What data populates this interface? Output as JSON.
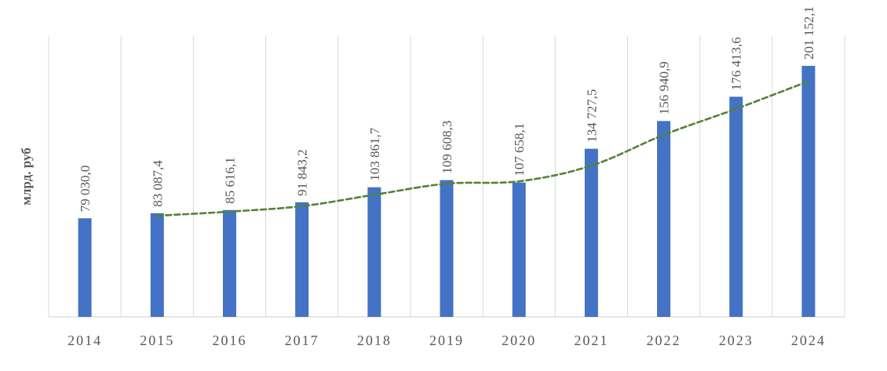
{
  "chart_data": {
    "type": "bar",
    "title": "",
    "xlabel": "",
    "ylabel": "млрд. руб",
    "categories": [
      "2014",
      "2015",
      "2016",
      "2017",
      "2018",
      "2019",
      "2020",
      "2021",
      "2022",
      "2023",
      "2024"
    ],
    "series": [
      {
        "values": [
          79030.0,
          83087.4,
          85616.1,
          91843.2,
          103861.7,
          109608.3,
          107658.1,
          134727.5,
          156940.9,
          176413.6,
          201152.1
        ],
        "labels": [
          "79 030,0",
          "83 087,4",
          "85 616,1",
          "91 843,2",
          "103 861,7",
          "109 608,3",
          "107 658,1",
          "134 727,5",
          "156 940,9",
          "176 413,6",
          "201 152,1"
        ],
        "color": "#4472C4"
      }
    ],
    "trendline": {
      "type": "moving-average",
      "period": 2,
      "color": "#548235",
      "style": "dashed"
    },
    "ylim": [
      0,
      225000
    ],
    "grid": "vertical",
    "legend": "none"
  }
}
